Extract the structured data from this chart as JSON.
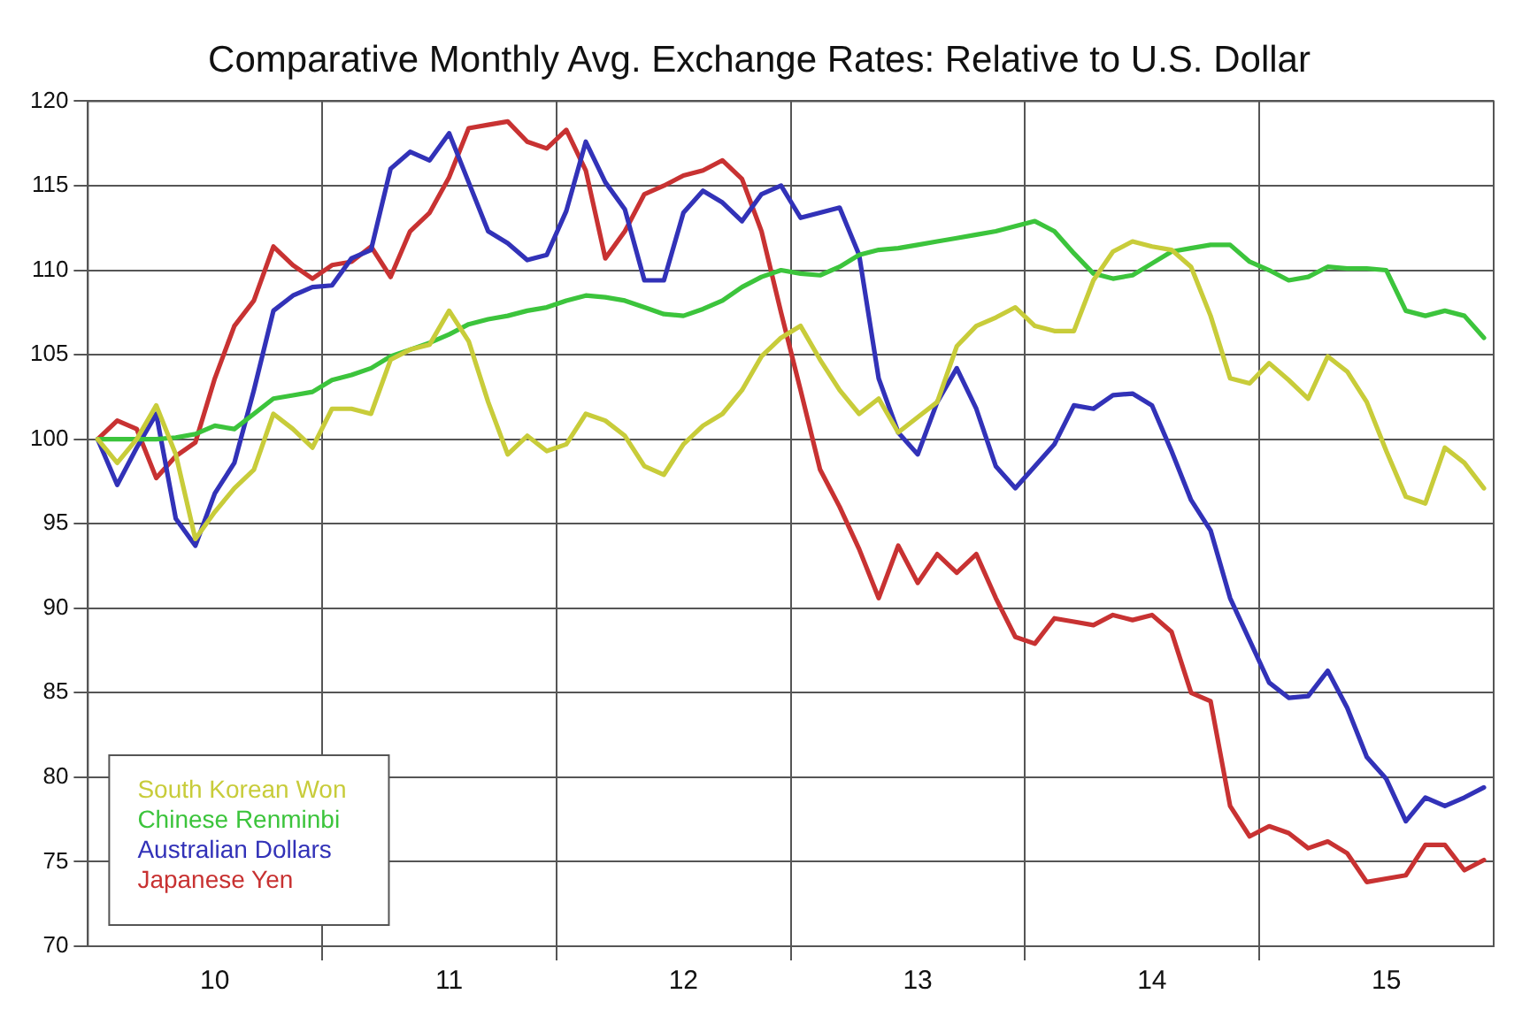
{
  "chart_data": {
    "type": "line",
    "title": "Comparative Monthly Avg. Exchange Rates: Relative to U.S. Dollar",
    "categories": [
      null,
      null,
      null,
      null,
      null,
      null,
      "10",
      null,
      null,
      null,
      null,
      null,
      null,
      null,
      null,
      null,
      null,
      null,
      "11",
      null,
      null,
      null,
      null,
      null,
      null,
      null,
      null,
      null,
      null,
      null,
      "12",
      null,
      null,
      null,
      null,
      null,
      null,
      null,
      null,
      null,
      null,
      null,
      "13",
      null,
      null,
      null,
      null,
      null,
      null,
      null,
      null,
      null,
      null,
      null,
      "14",
      null,
      null,
      null,
      null,
      null,
      null,
      null,
      null,
      null,
      null,
      null,
      "15",
      null,
      null,
      null,
      null,
      null
    ],
    "series": [
      {
        "name": "South Korean Won",
        "color": "#c8cc3a",
        "values": [
          100,
          98.6,
          100,
          102,
          99.1,
          94.1,
          95.7,
          97.1,
          98.2,
          101.5,
          100.6,
          99.5,
          101.8,
          101.8,
          101.5,
          104.7,
          105.3,
          105.6,
          107.6,
          105.8,
          102.2,
          99.1,
          100.2,
          99.3,
          99.7,
          101.5,
          101.1,
          100.2,
          98.4,
          97.9,
          99.7,
          100.8,
          101.5,
          102.9,
          104.9,
          106,
          106.7,
          104.7,
          102.9,
          101.5,
          102.4,
          100.4,
          101.3,
          102.2,
          105.5,
          106.7,
          107.2,
          107.8,
          106.7,
          106.4,
          106.4,
          109.4,
          111.1,
          111.7,
          111.4,
          111.2,
          110.2,
          107.3,
          103.6,
          103.3,
          104.5,
          103.5,
          102.4,
          104.9,
          104,
          102.2,
          99.3,
          96.6,
          96.2,
          99.5,
          98.6,
          97.1
        ]
      },
      {
        "name": "Chinese Renminbi",
        "color": "#3cc43c",
        "values": [
          100,
          100,
          100,
          100,
          100.1,
          100.3,
          100.8,
          100.6,
          101.5,
          102.4,
          102.6,
          102.8,
          103.5,
          103.8,
          104.2,
          104.9,
          105.3,
          105.7,
          106.2,
          106.8,
          107.1,
          107.3,
          107.6,
          107.8,
          108.2,
          108.5,
          108.4,
          108.2,
          107.8,
          107.4,
          107.3,
          107.7,
          108.2,
          109,
          109.6,
          110,
          109.8,
          109.7,
          110.2,
          110.9,
          111.2,
          111.3,
          111.5,
          111.7,
          111.9,
          112.1,
          112.3,
          112.6,
          112.9,
          112.3,
          111,
          109.8,
          109.5,
          109.7,
          110.4,
          111.1,
          111.3,
          111.5,
          111.5,
          110.5,
          110,
          109.4,
          109.6,
          110.2,
          110.1,
          110.1,
          110,
          107.6,
          107.3,
          107.6,
          107.3,
          106
        ]
      },
      {
        "name": "Australian Dollars",
        "color": "#3232b8",
        "values": [
          100,
          97.3,
          99.5,
          101.5,
          95.3,
          93.7,
          96.8,
          98.6,
          102.9,
          107.6,
          108.5,
          109,
          109.1,
          110.7,
          111.2,
          116,
          117,
          116.5,
          118.1,
          115.2,
          112.3,
          111.6,
          110.6,
          110.9,
          113.5,
          117.6,
          115.2,
          113.6,
          109.4,
          109.4,
          113.4,
          114.7,
          114,
          112.9,
          114.5,
          115,
          113.1,
          113.4,
          113.7,
          110.9,
          103.6,
          100.4,
          99.1,
          102.2,
          104.2,
          101.8,
          98.4,
          97.1,
          98.4,
          99.7,
          102,
          101.8,
          102.6,
          102.7,
          102,
          99.3,
          96.4,
          94.6,
          90.6,
          88.1,
          85.6,
          84.7,
          84.8,
          86.3,
          84.1,
          81.2,
          79.9,
          77.4,
          78.8,
          78.3,
          78.8,
          79.4
        ]
      },
      {
        "name": "Japanese Yen",
        "color": "#c83232",
        "values": [
          100,
          101.1,
          100.6,
          97.7,
          99,
          99.8,
          103.6,
          106.7,
          108.2,
          111.4,
          110.3,
          109.5,
          110.3,
          110.5,
          111.4,
          109.6,
          112.3,
          113.4,
          115.5,
          118.4,
          118.6,
          118.8,
          117.6,
          117.2,
          118.3,
          115.9,
          110.7,
          112.3,
          114.5,
          115,
          115.6,
          115.9,
          116.5,
          115.4,
          112.3,
          107.5,
          102.9,
          98.2,
          96,
          93.5,
          90.6,
          93.7,
          91.5,
          93.2,
          92.1,
          93.2,
          90.6,
          88.3,
          87.9,
          89.4,
          89.2,
          89,
          89.6,
          89.3,
          89.6,
          88.6,
          85,
          84.5,
          78.3,
          76.5,
          77.1,
          76.7,
          75.8,
          76.2,
          75.5,
          73.8,
          74,
          74.2,
          76,
          76,
          74.5,
          75.1
        ]
      }
    ],
    "ylim": [
      70,
      120
    ],
    "yticks": [
      70,
      75,
      80,
      85,
      90,
      95,
      100,
      105,
      110,
      115,
      120
    ],
    "grid": true,
    "legend": "bottom left",
    "marker": "none",
    "line_style": "solid"
  }
}
